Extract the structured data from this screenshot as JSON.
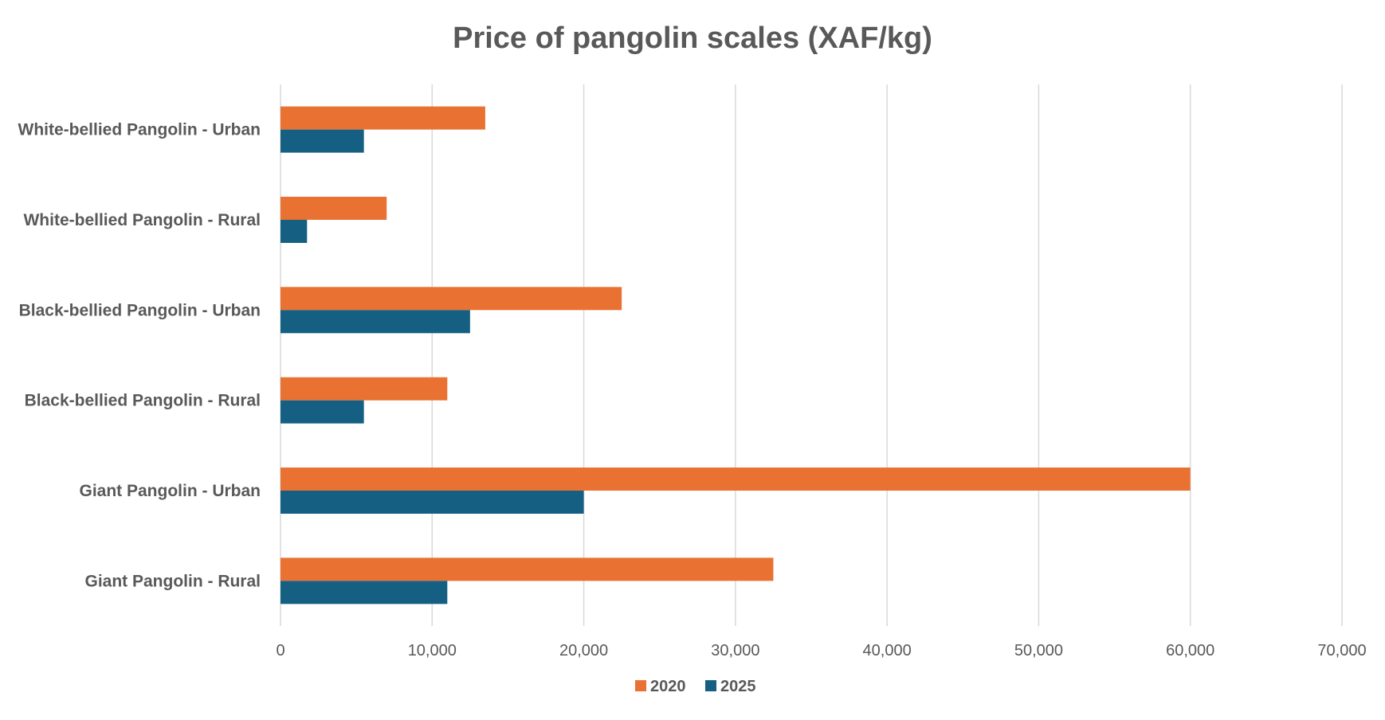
{
  "chart_data": {
    "type": "bar",
    "orientation": "horizontal",
    "title": "Price of pangolin scales (XAF/kg)",
    "xlabel": "",
    "ylabel": "",
    "categories": [
      "White-bellied Pangolin - Urban",
      "White-bellied Pangolin - Rural",
      "Black-bellied Pangolin - Urban",
      "Black-bellied Pangolin - Rural",
      "Giant Pangolin - Urban",
      "Giant Pangolin - Rural"
    ],
    "series": [
      {
        "name": "2020",
        "color": "#E97132",
        "values": [
          13500,
          7000,
          22500,
          11000,
          60000,
          32500
        ]
      },
      {
        "name": "2025",
        "color": "#156082",
        "values": [
          5500,
          1750,
          12500,
          5500,
          20000,
          11000
        ]
      }
    ],
    "xlim": [
      0,
      70000
    ],
    "xticks": [
      0,
      10000,
      20000,
      30000,
      40000,
      50000,
      60000,
      70000
    ],
    "xtick_labels": [
      "0",
      "10,000",
      "20,000",
      "30,000",
      "40,000",
      "50,000",
      "60,000",
      "70,000"
    ],
    "grid": "vertical",
    "legend": "bottom"
  }
}
